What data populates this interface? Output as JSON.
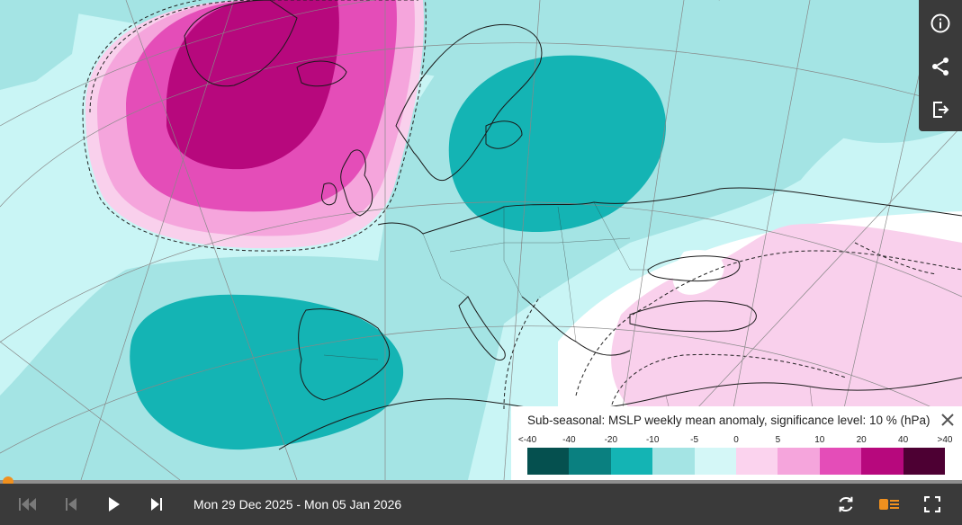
{
  "map": {
    "colors": {
      "ocean_base": "#c9f5f5",
      "neg_weak": "#a4e4e4",
      "neg_mid": "#14b4b4",
      "pos_weak": "#f9d0ec",
      "pos_light": "#f5a5dc",
      "pos_mid": "#e44db8",
      "pos_strong": "#b7087d",
      "neutral": "#ffffff",
      "graticule": "#888888",
      "coast": "#1a1a1a"
    }
  },
  "sidebar": {
    "items": [
      {
        "icon": "info-icon"
      },
      {
        "icon": "share-icon"
      },
      {
        "icon": "export-icon"
      }
    ]
  },
  "legend": {
    "title": "Sub-seasonal: MSLP weekly mean anomaly, significance level: 10 % (hPa)",
    "labels": [
      "<-40",
      "-40",
      "-20",
      "-10",
      "-5",
      "0",
      "5",
      "10",
      "20",
      "40",
      ">40"
    ],
    "colors": [
      "#05504f",
      "#0a8080",
      "#14b4b4",
      "#a4e4e4",
      "#d4f7f7",
      "#fbd3ee",
      "#f5a5dc",
      "#e44db8",
      "#b7087d",
      "#4d0033"
    ]
  },
  "player": {
    "progress_fraction": 0.0,
    "date_range": "Mon 29 Dec 2025 - Mon 05 Jan 2026",
    "accent": "#f0901e"
  }
}
